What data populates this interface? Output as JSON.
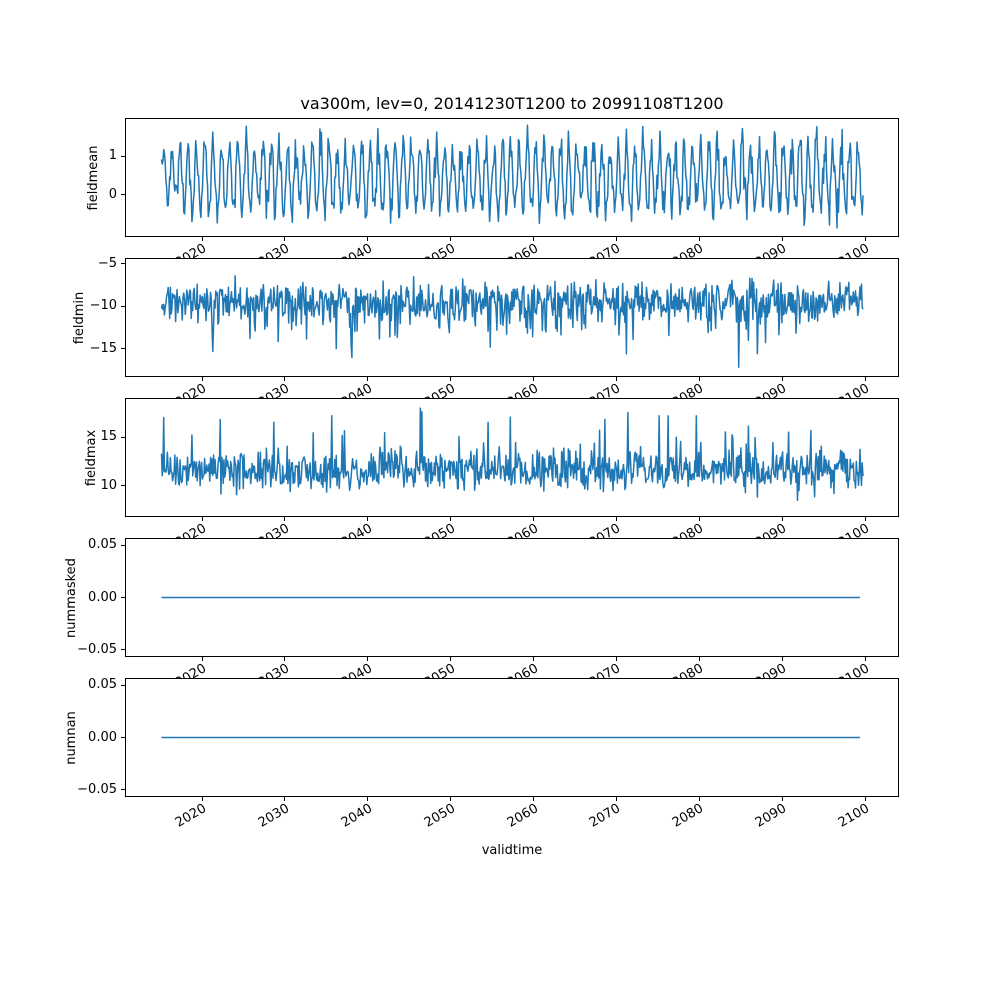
{
  "figure": {
    "title": "va300m, lev=0, 20141230T1200 to 20991108T1200",
    "xlabel": "validtime",
    "line_color": "#1f77b4",
    "axis_color": "#000000",
    "background_color": "#ffffff",
    "xtick_rotation_deg": 30,
    "xticks": [
      {
        "v": 2020,
        "label": "2020"
      },
      {
        "v": 2030,
        "label": "2030"
      },
      {
        "v": 2040,
        "label": "2040"
      },
      {
        "v": 2050,
        "label": "2050"
      },
      {
        "v": 2060,
        "label": "2060"
      },
      {
        "v": 2070,
        "label": "2070"
      },
      {
        "v": 2080,
        "label": "2080"
      },
      {
        "v": 2090,
        "label": "2090"
      },
      {
        "v": 2100,
        "label": "2100"
      }
    ]
  },
  "chart_data": [
    {
      "type": "line",
      "name": "fieldmean",
      "ylabel": "fieldmean",
      "xlim": [
        2010.7,
        2104.1
      ],
      "ylim": [
        -1.1,
        2.0
      ],
      "x_start": 2014.99,
      "x_end": 2099.86,
      "x_step": 0.09,
      "yticks": [
        {
          "v": 1,
          "label": "1"
        },
        {
          "v": 0,
          "label": "0"
        }
      ],
      "series": {
        "pattern": "seasonal",
        "seed": 7,
        "mean": 0.45,
        "amplitude": 0.8,
        "noise": 0.22,
        "period_years": 1,
        "clamp": [
          -1.0,
          1.88
        ],
        "summary": "Dense annual oscillation of the field mean; values mostly between -0.9 and 1.8, centered near 0.5, spanning 2015-2100."
      }
    },
    {
      "type": "line",
      "name": "fieldmin",
      "ylabel": "fieldmin",
      "xlim": [
        2010.7,
        2104.1
      ],
      "ylim": [
        -18.3,
        -4.3
      ],
      "x_start": 2014.99,
      "x_end": 2099.86,
      "x_step": 0.09,
      "yticks": [
        {
          "v": -5,
          "label": "−5"
        },
        {
          "v": -10,
          "label": "−10"
        },
        {
          "v": -15,
          "label": "−15"
        }
      ],
      "series": {
        "pattern": "noisy-min",
        "seed": 13,
        "base": -8.3,
        "jitter": 0.9,
        "tail": 1.6,
        "spike_prob": 0.03,
        "spike_amp": 6,
        "clamp": [
          -17.8,
          -5.0
        ],
        "summary": "Noisy field minimum around -9 with frequent downward spikes to about -15 and a deepest spike near -17.5 around 2049; mostly between -13 and -6."
      }
    },
    {
      "type": "line",
      "name": "fieldmax",
      "ylabel": "fieldmax",
      "xlim": [
        2010.7,
        2104.1
      ],
      "ylim": [
        6.8,
        19.0
      ],
      "x_start": 2014.99,
      "x_end": 2099.86,
      "x_step": 0.09,
      "yticks": [
        {
          "v": 15,
          "label": "15"
        },
        {
          "v": 10,
          "label": "10"
        }
      ],
      "series": {
        "pattern": "noisy-max",
        "seed": 29,
        "base": 10.6,
        "jitter": 0.8,
        "tail": 1.3,
        "spike_prob": 0.03,
        "spike_amp": 6.5,
        "clamp": [
          7.4,
          18.5
        ],
        "summary": "Noisy field maximum around 11 with upward spikes to about 18; mostly between 8 and 14 over 2015-2100."
      }
    },
    {
      "type": "line",
      "name": "nummasked",
      "ylabel": "nummasked",
      "xlim": [
        2010.7,
        2104.1
      ],
      "ylim": [
        -0.057,
        0.057
      ],
      "x_start": 2014.99,
      "x_end": 2099.86,
      "x_step": 0.5,
      "yticks": [
        {
          "v": 0.05,
          "label": "0.05"
        },
        {
          "v": 0.0,
          "label": "0.00"
        },
        {
          "v": -0.05,
          "label": "−0.05"
        }
      ],
      "series": {
        "pattern": "constant",
        "seed": 1,
        "value": 0,
        "summary": "Number of masked points is constant 0 for the entire period."
      }
    },
    {
      "type": "line",
      "name": "numnan",
      "ylabel": "numnan",
      "xlim": [
        2010.7,
        2104.1
      ],
      "ylim": [
        -0.057,
        0.057
      ],
      "x_start": 2014.99,
      "x_end": 2099.86,
      "x_step": 0.5,
      "yticks": [
        {
          "v": 0.05,
          "label": "0.05"
        },
        {
          "v": 0.0,
          "label": "0.00"
        },
        {
          "v": -0.05,
          "label": "−0.05"
        }
      ],
      "series": {
        "pattern": "constant",
        "seed": 2,
        "value": 0,
        "summary": "Number of NaN points is constant 0 for the entire period."
      }
    }
  ]
}
